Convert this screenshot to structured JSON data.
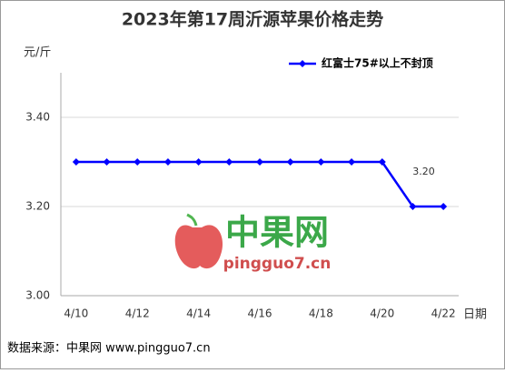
{
  "chart_data": {
    "type": "line",
    "title": "2023年第17周沂源苹果价格走势",
    "y_label": "元/斤",
    "x_label": "日期",
    "categories": [
      "4/10",
      null,
      "4/12",
      null,
      "4/14",
      null,
      "4/16",
      null,
      "4/18",
      null,
      "4/20",
      null,
      "4/22"
    ],
    "series": [
      {
        "name": "红富士75#以上不封顶",
        "color": "#0000ff",
        "values": [
          3.3,
          3.3,
          3.3,
          3.3,
          3.3,
          3.3,
          3.3,
          3.3,
          3.3,
          3.3,
          3.3,
          3.2,
          3.2
        ],
        "value_labels": [
          null,
          null,
          null,
          null,
          null,
          null,
          null,
          null,
          null,
          null,
          null,
          "3.20",
          null
        ]
      }
    ],
    "ylim": [
      3.0,
      3.5
    ],
    "yticks": [
      {
        "value": 3.0,
        "label": "3.00"
      },
      {
        "value": 3.2,
        "label": "3.20"
      },
      {
        "value": 3.4,
        "label": "3.40"
      }
    ],
    "grid": true,
    "legend": "top-right",
    "watermark": {
      "title": "中果网",
      "url": "pingguo7.cn"
    },
    "source": "数据来源：中果网 www.pingguo7.cn"
  }
}
